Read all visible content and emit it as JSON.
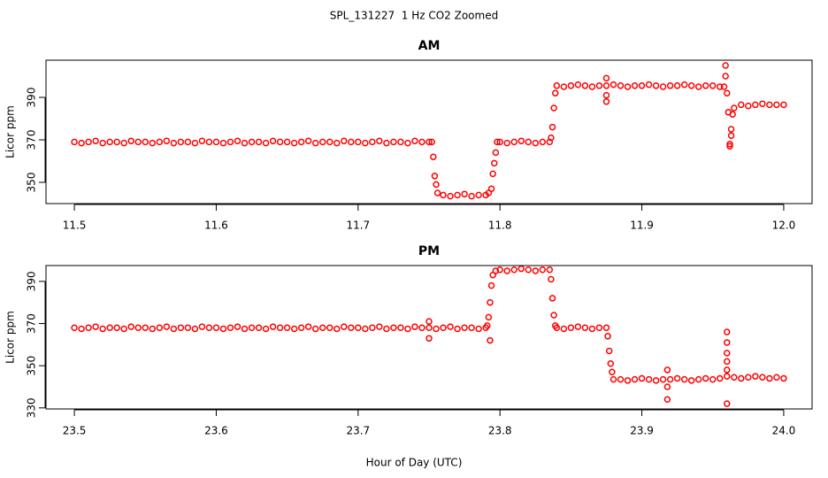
{
  "title": "SPL_131227  1 Hz CO2 Zoomed",
  "xlabel": "Hour of Day (UTC)",
  "chart_data": [
    {
      "type": "scatter",
      "title": "AM",
      "ylabel": "Licor ppm",
      "color": "#ff0000",
      "xlim": [
        11.48,
        12.02
      ],
      "ylim": [
        340,
        407.5
      ],
      "xticks": [
        11.5,
        11.6,
        11.7,
        11.8,
        11.9,
        {
          "value": 12,
          "label": "12.0"
        }
      ],
      "yticks": [
        350,
        370,
        390
      ],
      "x": [
        11.5,
        11.505,
        11.51,
        11.515,
        11.52,
        11.525,
        11.53,
        11.535,
        11.54,
        11.545,
        11.55,
        11.555,
        11.56,
        11.565,
        11.57,
        11.575,
        11.58,
        11.585,
        11.59,
        11.595,
        11.6,
        11.605,
        11.61,
        11.615,
        11.62,
        11.625,
        11.63,
        11.635,
        11.64,
        11.645,
        11.65,
        11.655,
        11.66,
        11.665,
        11.67,
        11.675,
        11.68,
        11.685,
        11.69,
        11.695,
        11.7,
        11.705,
        11.71,
        11.715,
        11.72,
        11.725,
        11.73,
        11.735,
        11.74,
        11.745,
        11.75,
        11.752,
        11.753,
        11.754,
        11.755,
        11.756,
        11.76,
        11.765,
        11.77,
        11.775,
        11.78,
        11.785,
        11.79,
        11.792,
        11.794,
        11.795,
        11.796,
        11.797,
        11.798,
        11.8,
        11.805,
        11.81,
        11.815,
        11.82,
        11.825,
        11.83,
        11.835,
        11.836,
        11.837,
        11.838,
        11.839,
        11.84,
        11.845,
        11.85,
        11.855,
        11.86,
        11.865,
        11.87,
        11.875,
        11.88,
        11.885,
        11.89,
        11.895,
        11.9,
        11.905,
        11.91,
        11.915,
        11.92,
        11.925,
        11.93,
        11.935,
        11.94,
        11.945,
        11.95,
        11.955,
        11.875,
        11.875,
        11.875,
        11.958,
        11.959,
        11.959,
        11.96,
        11.961,
        11.962,
        11.962,
        11.963,
        11.963,
        11.964,
        11.965,
        11.97,
        11.975,
        11.98,
        11.985,
        11.99,
        11.995,
        12
      ],
      "values": [
        369,
        368.5,
        369,
        369.5,
        368.5,
        369,
        369,
        368.5,
        369.5,
        369,
        369,
        368.5,
        369,
        369.5,
        368.5,
        369,
        369,
        368.5,
        369.5,
        369,
        369,
        368.5,
        369,
        369.5,
        368.5,
        369,
        369,
        368.5,
        369.5,
        369,
        369,
        368.5,
        369,
        369.5,
        368.5,
        369,
        369,
        368.5,
        369.5,
        369,
        369,
        368.5,
        369,
        369.5,
        368.5,
        369,
        369,
        368.5,
        369.5,
        369,
        369,
        369,
        362,
        353,
        349,
        345,
        344,
        343.5,
        344,
        344.5,
        343.5,
        344,
        344,
        345,
        347,
        354,
        359,
        364,
        369,
        369,
        368.5,
        369,
        369.5,
        369,
        368.5,
        369,
        369,
        371,
        376,
        385,
        392,
        395.5,
        395,
        395.5,
        396,
        395.5,
        395,
        395.5,
        395.5,
        396,
        395.5,
        395,
        395.5,
        395.5,
        396,
        395.5,
        395,
        395.5,
        395.5,
        396,
        395.5,
        395,
        395.5,
        395.5,
        395,
        399,
        391,
        388,
        395,
        405,
        400,
        392,
        383,
        367,
        368,
        372,
        375,
        382,
        385,
        386.5,
        386,
        386.5,
        387,
        386.5,
        386.5,
        386.5
      ]
    },
    {
      "type": "scatter",
      "title": "PM",
      "ylabel": "Licor ppm",
      "color": "#ff0000",
      "xlim": [
        23.48,
        24.02
      ],
      "ylim": [
        329.5,
        397.5
      ],
      "xticks": [
        23.5,
        23.6,
        23.7,
        23.8,
        23.9,
        {
          "value": 24,
          "label": "24.0"
        }
      ],
      "yticks": [
        330,
        350,
        370,
        390
      ],
      "x": [
        23.5,
        23.505,
        23.51,
        23.515,
        23.52,
        23.525,
        23.53,
        23.535,
        23.54,
        23.545,
        23.55,
        23.555,
        23.56,
        23.565,
        23.57,
        23.575,
        23.58,
        23.585,
        23.59,
        23.595,
        23.6,
        23.605,
        23.61,
        23.615,
        23.62,
        23.625,
        23.63,
        23.635,
        23.64,
        23.645,
        23.65,
        23.655,
        23.66,
        23.665,
        23.67,
        23.675,
        23.68,
        23.685,
        23.69,
        23.695,
        23.7,
        23.705,
        23.71,
        23.715,
        23.72,
        23.725,
        23.73,
        23.735,
        23.74,
        23.745,
        23.75,
        23.755,
        23.76,
        23.765,
        23.77,
        23.775,
        23.78,
        23.785,
        23.79,
        23.75,
        23.75,
        23.791,
        23.792,
        23.793,
        23.793,
        23.794,
        23.795,
        23.797,
        23.8,
        23.805,
        23.81,
        23.815,
        23.82,
        23.825,
        23.83,
        23.835,
        23.836,
        23.837,
        23.838,
        23.839,
        23.84,
        23.845,
        23.85,
        23.855,
        23.86,
        23.865,
        23.87,
        23.875,
        23.876,
        23.877,
        23.878,
        23.879,
        23.88,
        23.885,
        23.89,
        23.895,
        23.9,
        23.905,
        23.91,
        23.915,
        23.92,
        23.925,
        23.93,
        23.935,
        23.94,
        23.945,
        23.95,
        23.955,
        23.918,
        23.918,
        23.918,
        23.96,
        23.96,
        23.96,
        23.96,
        23.96,
        23.96,
        23.96,
        23.965,
        23.97,
        23.975,
        23.98,
        23.985,
        23.99,
        23.995,
        24
      ],
      "values": [
        368,
        367.5,
        368,
        368.5,
        367.5,
        368,
        368,
        367.5,
        368.5,
        368,
        368,
        367.5,
        368,
        368.5,
        367.5,
        368,
        368,
        367.5,
        368.5,
        368,
        368,
        367.5,
        368,
        368.5,
        367.5,
        368,
        368,
        367.5,
        368.5,
        368,
        368,
        367.5,
        368,
        368.5,
        367.5,
        368,
        368,
        367.5,
        368.5,
        368,
        368,
        367.5,
        368,
        368.5,
        367.5,
        368,
        368,
        367.5,
        368.5,
        368,
        368,
        367.5,
        368,
        368.5,
        367.5,
        368,
        368,
        367.5,
        368,
        371,
        363,
        369,
        373,
        380,
        362,
        388,
        393,
        395,
        395.5,
        395,
        395.5,
        396,
        395.5,
        395,
        395.5,
        395.5,
        391,
        382,
        374,
        369,
        368,
        367.5,
        368,
        368.5,
        368,
        367.5,
        368,
        368,
        364,
        357,
        351,
        347,
        343.5,
        343.5,
        343,
        343.5,
        344,
        343.5,
        343,
        343.5,
        343.5,
        344,
        343.5,
        343,
        343.5,
        344,
        343.5,
        344,
        348,
        340,
        334,
        366,
        361,
        356,
        352,
        348,
        345,
        332,
        344.5,
        344,
        344.5,
        345,
        344.5,
        344,
        344.5,
        344
      ]
    }
  ]
}
